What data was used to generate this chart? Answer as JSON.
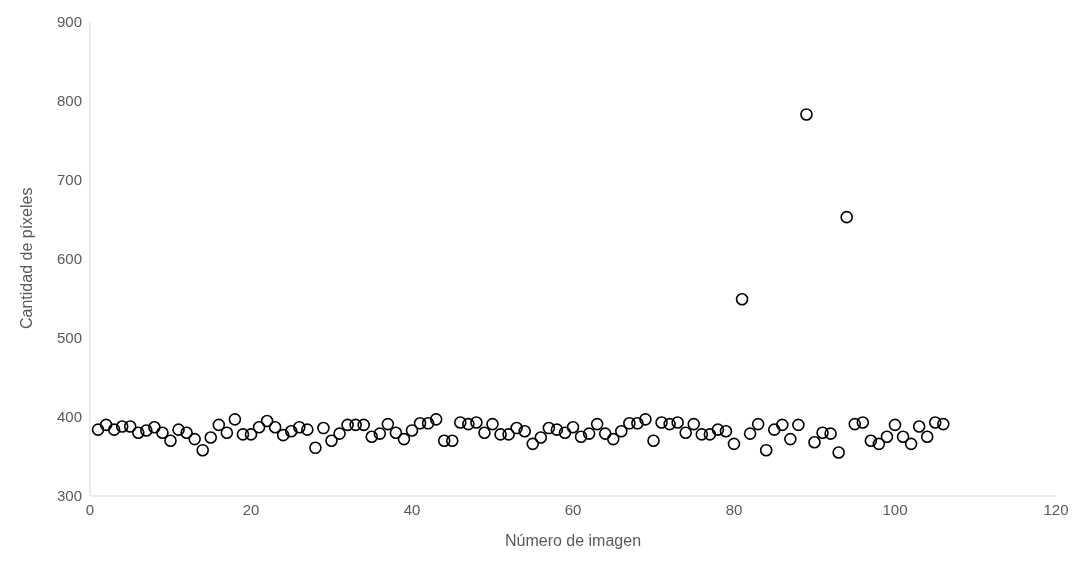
{
  "chart_data": {
    "type": "scatter",
    "xlabel": "Número de imagen",
    "ylabel": "Cantidad de píxeles",
    "marker": "circle",
    "grid": false,
    "legend": false,
    "xlim": [
      0,
      120
    ],
    "xticks": [
      0,
      20,
      40,
      60,
      80,
      100,
      120
    ],
    "ylim": [
      300,
      900
    ],
    "yticks": [
      300,
      400,
      500,
      600,
      700,
      800,
      900
    ],
    "x": [
      1,
      2,
      3,
      4,
      5,
      6,
      7,
      8,
      9,
      10,
      11,
      12,
      13,
      14,
      15,
      16,
      17,
      18,
      19,
      20,
      21,
      22,
      23,
      24,
      25,
      26,
      27,
      28,
      29,
      30,
      31,
      32,
      33,
      34,
      35,
      36,
      37,
      38,
      39,
      40,
      41,
      42,
      43,
      44,
      45,
      46,
      47,
      48,
      49,
      50,
      51,
      52,
      53,
      54,
      55,
      56,
      57,
      58,
      59,
      60,
      61,
      62,
      63,
      64,
      65,
      66,
      67,
      68,
      69,
      70,
      71,
      72,
      73,
      74,
      75,
      76,
      77,
      78,
      79,
      80,
      81,
      82,
      83,
      84,
      85,
      86,
      87,
      88,
      89,
      90,
      91,
      92,
      93,
      94,
      95,
      96,
      97,
      98,
      99,
      100,
      101,
      102,
      103,
      104,
      105,
      106
    ],
    "series": [
      {
        "color": "#000000",
        "values": [
          384,
          390,
          384,
          388,
          388,
          380,
          383,
          387,
          380,
          370,
          384,
          380,
          372,
          358,
          374,
          390,
          380,
          397,
          378,
          378,
          387,
          395,
          387,
          377,
          382,
          387,
          384,
          361,
          386,
          370,
          379,
          390,
          390,
          390,
          375,
          379,
          391,
          380,
          372,
          383,
          392,
          392,
          397,
          370,
          370,
          393,
          391,
          393,
          380,
          391,
          378,
          378,
          386,
          382,
          366,
          374,
          386,
          384,
          380,
          387,
          375,
          379,
          391,
          379,
          372,
          382,
          392,
          392,
          397,
          370,
          393,
          391,
          393,
          380,
          391,
          378,
          378,
          384,
          382,
          366,
          549,
          379,
          391,
          358,
          384,
          390,
          372,
          390,
          783,
          368,
          380,
          379,
          355,
          653,
          391,
          393,
          370,
          366,
          375,
          390,
          375,
          366,
          388,
          375,
          393,
          391
        ]
      }
    ]
  }
}
